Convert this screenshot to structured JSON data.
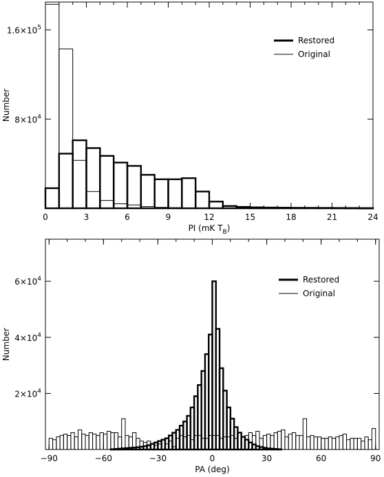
{
  "chart_data": [
    {
      "type": "histogram",
      "xlabel": "PI  (mK T",
      "xlabel_sub": "B",
      "xlabel_close": ")",
      "ylabel": "Number",
      "xlim": [
        0,
        24
      ],
      "ylim": [
        0,
        185000
      ],
      "xticks": [
        "0",
        "3",
        "6",
        "9",
        "12",
        "15",
        "18",
        "21",
        "24"
      ],
      "xtick_values": [
        0,
        3,
        6,
        9,
        12,
        15,
        18,
        21,
        24
      ],
      "yticks": [
        {
          "value": 80000,
          "mantissa": "8×10",
          "exp": "4"
        },
        {
          "value": 160000,
          "mantissa": "1.6×10",
          "exp": "5"
        }
      ],
      "bin_width": 1,
      "legend": {
        "position": "top-right",
        "entries": [
          "Restored",
          "Original"
        ]
      },
      "series": [
        {
          "name": "Restored",
          "style": "thick",
          "values": [
            18000,
            49000,
            61000,
            54000,
            47000,
            41000,
            38000,
            30000,
            26000,
            26000,
            27000,
            15000,
            6000,
            2000,
            1200,
            800,
            600,
            500,
            400,
            350,
            300,
            250,
            200,
            150
          ]
        },
        {
          "name": "Original",
          "style": "thin",
          "values": [
            183000,
            143000,
            43000,
            15000,
            7000,
            4000,
            3000,
            1500,
            800,
            500,
            300,
            200,
            100,
            50,
            30,
            20,
            10,
            10,
            5,
            5,
            5,
            5,
            5,
            5
          ]
        }
      ]
    },
    {
      "type": "histogram",
      "xlabel": "PA (deg)",
      "ylabel": "Number",
      "xlim": [
        -92,
        92
      ],
      "ylim": [
        0,
        75000
      ],
      "xticks": [
        "−90",
        "−60",
        "−30",
        "0",
        "30",
        "60",
        "90"
      ],
      "xtick_values": [
        -90,
        -60,
        -30,
        0,
        30,
        60,
        90
      ],
      "yticks": [
        {
          "value": 20000,
          "mantissa": "2×10",
          "exp": "4"
        },
        {
          "value": 40000,
          "mantissa": "4×10",
          "exp": "4"
        },
        {
          "value": 60000,
          "mantissa": "6×10",
          "exp": "4"
        }
      ],
      "bin_start": -90,
      "bin_width": 2,
      "legend": {
        "position": "top-right",
        "entries": [
          "Restored",
          "Original"
        ]
      },
      "series": [
        {
          "name": "Restored",
          "style": "thick",
          "values": [
            0,
            0,
            0,
            0,
            0,
            0,
            0,
            0,
            0,
            0,
            0,
            0,
            0,
            0,
            0,
            0,
            0,
            100,
            200,
            300,
            400,
            500,
            600,
            700,
            800,
            1000,
            1200,
            1500,
            2000,
            2500,
            3000,
            3500,
            4000,
            5000,
            6000,
            7000,
            8500,
            10000,
            12000,
            15000,
            19000,
            23000,
            28000,
            34000,
            41000,
            60000,
            43000,
            29000,
            21000,
            15000,
            11000,
            8000,
            6000,
            4500,
            3500,
            2500,
            1800,
            1200,
            900,
            600,
            400,
            300,
            200,
            100,
            0,
            0,
            0,
            0,
            0,
            0,
            0,
            0,
            0,
            0,
            0,
            0,
            0,
            0,
            0,
            0,
            0,
            0,
            0,
            0,
            0,
            0,
            0,
            0,
            0,
            0
          ]
        },
        {
          "name": "Original",
          "style": "thin",
          "values": [
            4000,
            3500,
            4500,
            5000,
            5500,
            5000,
            6000,
            4500,
            7000,
            5500,
            5000,
            6000,
            5500,
            5000,
            6000,
            5500,
            6500,
            6000,
            6000,
            4500,
            11000,
            5000,
            4500,
            6000,
            4000,
            3000,
            2500,
            3000,
            2000,
            1500,
            2000,
            3500,
            2000,
            3000,
            1000,
            4000,
            5000,
            4500,
            5000,
            3500,
            5000,
            5000,
            4000,
            4000,
            5000,
            5000,
            5000,
            4000,
            4500,
            4500,
            5000,
            4000,
            6000,
            4500,
            5000,
            6000,
            5000,
            6500,
            4000,
            5000,
            5500,
            5000,
            6000,
            6500,
            7000,
            4500,
            5500,
            6000,
            5000,
            5000,
            11000,
            4500,
            5000,
            4500,
            4500,
            4000,
            4000,
            4500,
            4000,
            4500,
            5000,
            5500,
            3500,
            4000,
            4000,
            4000,
            3000,
            4500,
            3500,
            7500
          ]
        }
      ]
    }
  ]
}
